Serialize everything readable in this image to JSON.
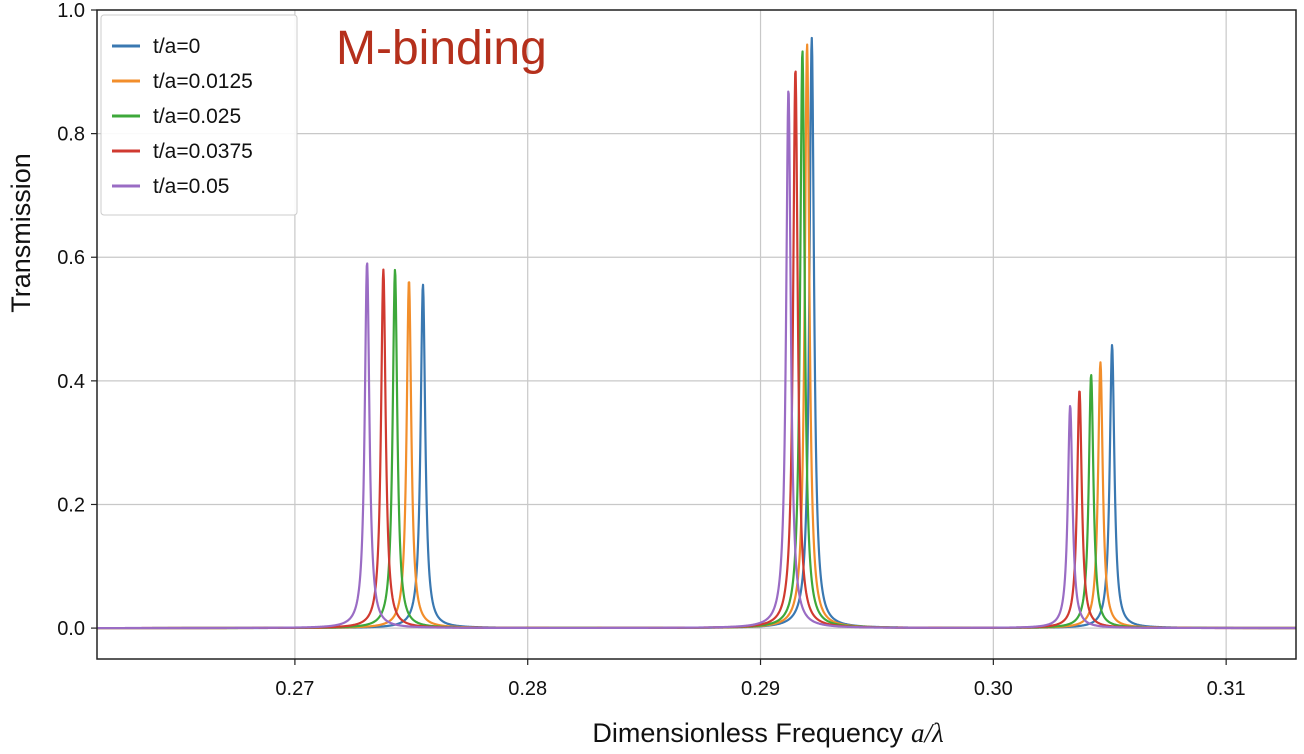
{
  "chart_data": {
    "type": "line",
    "title": "",
    "annotation": "M-binding",
    "annotation_color": "#b5301c",
    "xlabel": "Dimensionless Frequency",
    "xlabel_math": "a/λ",
    "ylabel": "Transmission",
    "xlim": [
      0.2615,
      0.313
    ],
    "ylim": [
      -0.05,
      1.0
    ],
    "xticks": [
      0.27,
      0.28,
      0.29,
      0.3,
      0.31
    ],
    "xtick_labels": [
      "0.27",
      "0.28",
      "0.29",
      "0.30",
      "0.31"
    ],
    "yticks": [
      0.0,
      0.2,
      0.4,
      0.6,
      0.8,
      1.0
    ],
    "ytick_labels": [
      "0.0",
      "0.2",
      "0.4",
      "0.6",
      "0.8",
      "1.0"
    ],
    "grid": true,
    "legend_position": "top-left",
    "series": [
      {
        "name": "t/a=0",
        "color": "#3a78b1",
        "peaks": [
          {
            "x": 0.2755,
            "y": 0.556
          },
          {
            "x": 0.2922,
            "y": 0.955
          },
          {
            "x": 0.3051,
            "y": 0.458
          }
        ]
      },
      {
        "name": "t/a=0.0125",
        "color": "#f28e2b",
        "peaks": [
          {
            "x": 0.2749,
            "y": 0.563
          },
          {
            "x": 0.292,
            "y": 0.945
          },
          {
            "x": 0.3046,
            "y": 0.43
          }
        ]
      },
      {
        "name": "t/a=0.025",
        "color": "#3da83a",
        "peaks": [
          {
            "x": 0.2743,
            "y": 0.58
          },
          {
            "x": 0.2918,
            "y": 0.935
          },
          {
            "x": 0.3042,
            "y": 0.41
          }
        ]
      },
      {
        "name": "t/a=0.0375",
        "color": "#d03a30",
        "peaks": [
          {
            "x": 0.2738,
            "y": 0.58
          },
          {
            "x": 0.2915,
            "y": 0.905
          },
          {
            "x": 0.3037,
            "y": 0.385
          }
        ]
      },
      {
        "name": "t/a=0.05",
        "color": "#9a6cc4",
        "peaks": [
          {
            "x": 0.2731,
            "y": 0.592
          },
          {
            "x": 0.2912,
            "y": 0.872
          },
          {
            "x": 0.3033,
            "y": 0.36
          }
        ]
      }
    ]
  }
}
